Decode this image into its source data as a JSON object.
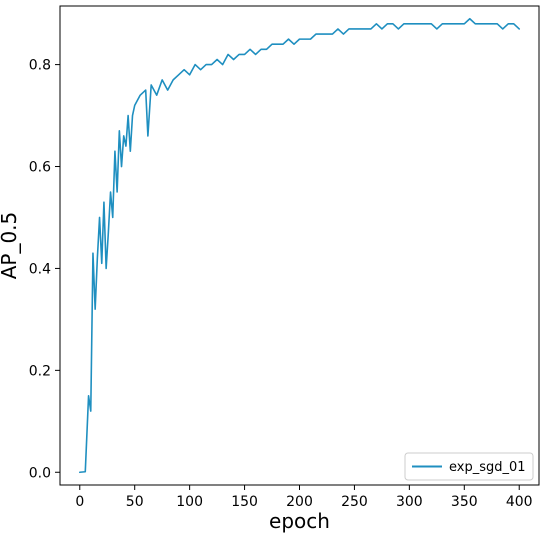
{
  "chart_data": {
    "type": "line",
    "title": "",
    "xlabel": "epoch",
    "ylabel": "AP_0.5",
    "xlim": [
      -18,
      418
    ],
    "ylim": [
      -0.025,
      0.915
    ],
    "xticks": [
      0,
      50,
      100,
      150,
      200,
      250,
      300,
      350,
      400
    ],
    "xtick_labels": [
      "0",
      "50",
      "100",
      "150",
      "200",
      "250",
      "300",
      "350",
      "400"
    ],
    "yticks": [
      0.0,
      0.2,
      0.4,
      0.6,
      0.8
    ],
    "ytick_labels": [
      "0.0",
      "0.2",
      "0.4",
      "0.6",
      "0.8"
    ],
    "grid": false,
    "legend_position": "lower-right",
    "series": [
      {
        "name": "exp_sgd_01",
        "color": "#1f8fc0",
        "points": [
          [
            0,
            0.0
          ],
          [
            5,
            0.001
          ],
          [
            8,
            0.15
          ],
          [
            10,
            0.12
          ],
          [
            12,
            0.43
          ],
          [
            14,
            0.32
          ],
          [
            16,
            0.42
          ],
          [
            18,
            0.5
          ],
          [
            20,
            0.41
          ],
          [
            22,
            0.53
          ],
          [
            24,
            0.4
          ],
          [
            26,
            0.47
          ],
          [
            28,
            0.55
          ],
          [
            30,
            0.5
          ],
          [
            32,
            0.63
          ],
          [
            34,
            0.55
          ],
          [
            36,
            0.67
          ],
          [
            38,
            0.6
          ],
          [
            40,
            0.66
          ],
          [
            42,
            0.64
          ],
          [
            44,
            0.7
          ],
          [
            46,
            0.63
          ],
          [
            48,
            0.7
          ],
          [
            50,
            0.72
          ],
          [
            55,
            0.74
          ],
          [
            60,
            0.75
          ],
          [
            62,
            0.66
          ],
          [
            65,
            0.76
          ],
          [
            70,
            0.74
          ],
          [
            75,
            0.77
          ],
          [
            80,
            0.75
          ],
          [
            85,
            0.77
          ],
          [
            90,
            0.78
          ],
          [
            95,
            0.79
          ],
          [
            100,
            0.78
          ],
          [
            105,
            0.8
          ],
          [
            110,
            0.79
          ],
          [
            115,
            0.8
          ],
          [
            120,
            0.8
          ],
          [
            125,
            0.81
          ],
          [
            130,
            0.8
          ],
          [
            135,
            0.82
          ],
          [
            140,
            0.81
          ],
          [
            145,
            0.82
          ],
          [
            150,
            0.82
          ],
          [
            155,
            0.83
          ],
          [
            160,
            0.82
          ],
          [
            165,
            0.83
          ],
          [
            170,
            0.83
          ],
          [
            175,
            0.84
          ],
          [
            180,
            0.84
          ],
          [
            185,
            0.84
          ],
          [
            190,
            0.85
          ],
          [
            195,
            0.84
          ],
          [
            200,
            0.85
          ],
          [
            205,
            0.85
          ],
          [
            210,
            0.85
          ],
          [
            215,
            0.86
          ],
          [
            220,
            0.86
          ],
          [
            225,
            0.86
          ],
          [
            230,
            0.86
          ],
          [
            235,
            0.87
          ],
          [
            240,
            0.86
          ],
          [
            245,
            0.87
          ],
          [
            250,
            0.87
          ],
          [
            255,
            0.87
          ],
          [
            260,
            0.87
          ],
          [
            265,
            0.87
          ],
          [
            270,
            0.88
          ],
          [
            275,
            0.87
          ],
          [
            280,
            0.88
          ],
          [
            285,
            0.88
          ],
          [
            290,
            0.87
          ],
          [
            295,
            0.88
          ],
          [
            300,
            0.88
          ],
          [
            305,
            0.88
          ],
          [
            310,
            0.88
          ],
          [
            315,
            0.88
          ],
          [
            320,
            0.88
          ],
          [
            325,
            0.87
          ],
          [
            330,
            0.88
          ],
          [
            335,
            0.88
          ],
          [
            340,
            0.88
          ],
          [
            345,
            0.88
          ],
          [
            350,
            0.88
          ],
          [
            355,
            0.89
          ],
          [
            360,
            0.88
          ],
          [
            365,
            0.88
          ],
          [
            370,
            0.88
          ],
          [
            375,
            0.88
          ],
          [
            380,
            0.88
          ],
          [
            385,
            0.87
          ],
          [
            390,
            0.88
          ],
          [
            395,
            0.88
          ],
          [
            400,
            0.87
          ]
        ]
      }
    ]
  }
}
